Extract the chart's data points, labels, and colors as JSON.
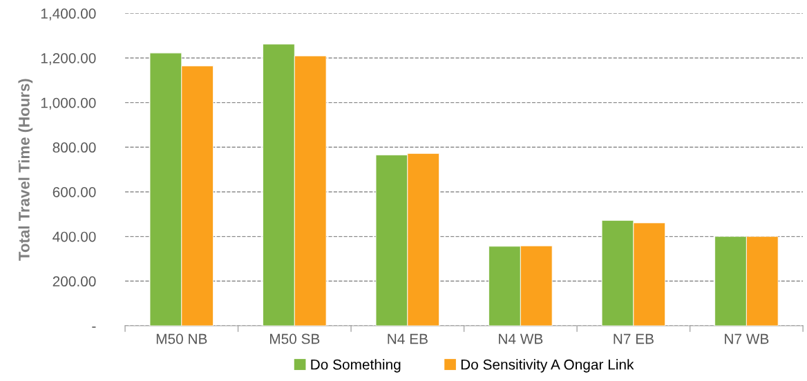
{
  "chart_data": {
    "type": "bar",
    "ylabel": "Total Travel Time (Hours)",
    "categories": [
      "M50 NB",
      "M50 SB",
      "N4 EB",
      "N4 WB",
      "N7 EB",
      "N7 WB"
    ],
    "series": [
      {
        "name": "Do Something",
        "color": "#80b943",
        "values": [
          1222,
          1262,
          765,
          356,
          472,
          400
        ]
      },
      {
        "name": "Do Sensitivity A Ongar Link",
        "color": "#fba11c",
        "values": [
          1164,
          1209,
          772,
          358,
          461,
          400
        ]
      }
    ],
    "ylim": [
      0,
      1400
    ],
    "yticks": [
      {
        "value": 0,
        "label": "-"
      },
      {
        "value": 200,
        "label": "200.00"
      },
      {
        "value": 400,
        "label": "400.00"
      },
      {
        "value": 600,
        "label": "600.00"
      },
      {
        "value": 800,
        "label": "800.00"
      },
      {
        "value": 1000,
        "label": "1,000.00"
      },
      {
        "value": 1200,
        "label": "1,200.00"
      },
      {
        "value": 1400,
        "label": "1,400.00"
      }
    ],
    "grid": "y",
    "legend": "bottom"
  }
}
